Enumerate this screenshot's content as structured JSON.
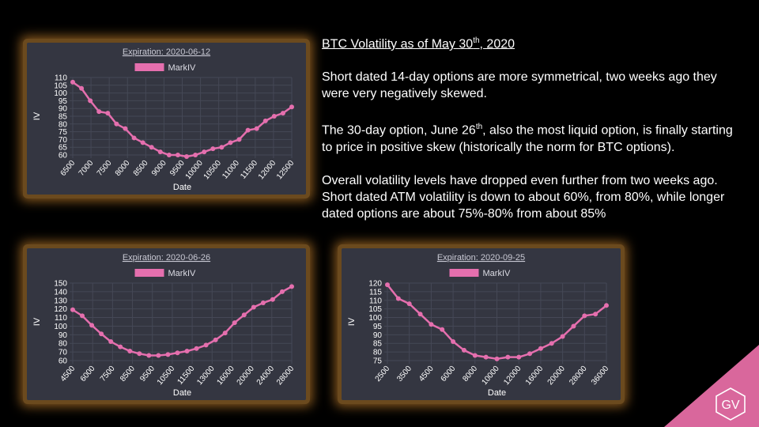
{
  "notes": {
    "heading_prefix": "BTC Volatility as of May 30",
    "heading_sup": "th",
    "heading_suffix": ", 2020",
    "p1": "Short dated 14-day options are more symmetrical, two weeks ago they were very negatively skewed.",
    "p2_a": "The 30-day option, June 26",
    "p2_sup": "th",
    "p2_b": ", also the most liquid option, is finally starting to price in positive skew (historically the norm for BTC options).",
    "p3": "Overall volatility levels have dropped even further from two weeks ago. Short dated ATM volatility is down to about 60%, from 80%, while longer dated options are about 75%-80% from about 85%"
  },
  "logo": {
    "text": "GV",
    "color": "#d9679c"
  },
  "colors": {
    "series": "#e56fae",
    "panel_bg": "#343641",
    "glow": "#8a5a1f",
    "grid": "#454856",
    "text": "#ffffff"
  },
  "chart_data": [
    {
      "type": "line",
      "title": "Expiration: 2020-06-12",
      "xlabel": "Date",
      "ylabel": "IV",
      "ylim": [
        60,
        110
      ],
      "yticks": [
        60,
        65,
        70,
        75,
        80,
        85,
        90,
        95,
        100,
        105,
        110
      ],
      "xlabels": [
        "6500",
        "7000",
        "7500",
        "8000",
        "8500",
        "9000",
        "9500",
        "10000",
        "10500",
        "11000",
        "11500",
        "12000",
        "12500"
      ],
      "series": [
        {
          "name": "MarkIV",
          "color": "#e56fae",
          "values": [
            107,
            103,
            95,
            88,
            87,
            80,
            77,
            71,
            68,
            65,
            62,
            60,
            60,
            59,
            60,
            62,
            64,
            65,
            68,
            70,
            76,
            77,
            82,
            85,
            87,
            91
          ]
        }
      ]
    },
    {
      "type": "line",
      "title": "Expiration: 2020-06-26",
      "xlabel": "Date",
      "ylabel": "IV",
      "ylim": [
        60,
        150
      ],
      "yticks": [
        60,
        70,
        80,
        90,
        100,
        110,
        120,
        130,
        140,
        150
      ],
      "xlabels": [
        "4500",
        "6000",
        "7500",
        "8500",
        "9500",
        "10500",
        "11500",
        "13000",
        "16000",
        "20000",
        "24000",
        "28000"
      ],
      "series": [
        {
          "name": "MarkIV",
          "color": "#e56fae",
          "values": [
            119,
            112,
            101,
            91,
            82,
            76,
            71,
            68,
            66,
            66,
            67,
            69,
            71,
            74,
            78,
            84,
            92,
            104,
            113,
            122,
            127,
            131,
            140,
            146
          ]
        }
      ]
    },
    {
      "type": "line",
      "title": "Expiration: 2020-09-25",
      "xlabel": "Date",
      "ylabel": "IV",
      "ylim": [
        75,
        120
      ],
      "yticks": [
        75,
        80,
        85,
        90,
        95,
        100,
        105,
        110,
        115,
        120
      ],
      "xlabels": [
        "2500",
        "3500",
        "4500",
        "6000",
        "8000",
        "10000",
        "12000",
        "16000",
        "20000",
        "28000",
        "36000"
      ],
      "series": [
        {
          "name": "MarkIV",
          "color": "#e56fae",
          "values": [
            119,
            111,
            108,
            102,
            96,
            93,
            86,
            81,
            78,
            77,
            76,
            77,
            77,
            79,
            82,
            85,
            89,
            95,
            101,
            102,
            107
          ]
        }
      ]
    }
  ]
}
